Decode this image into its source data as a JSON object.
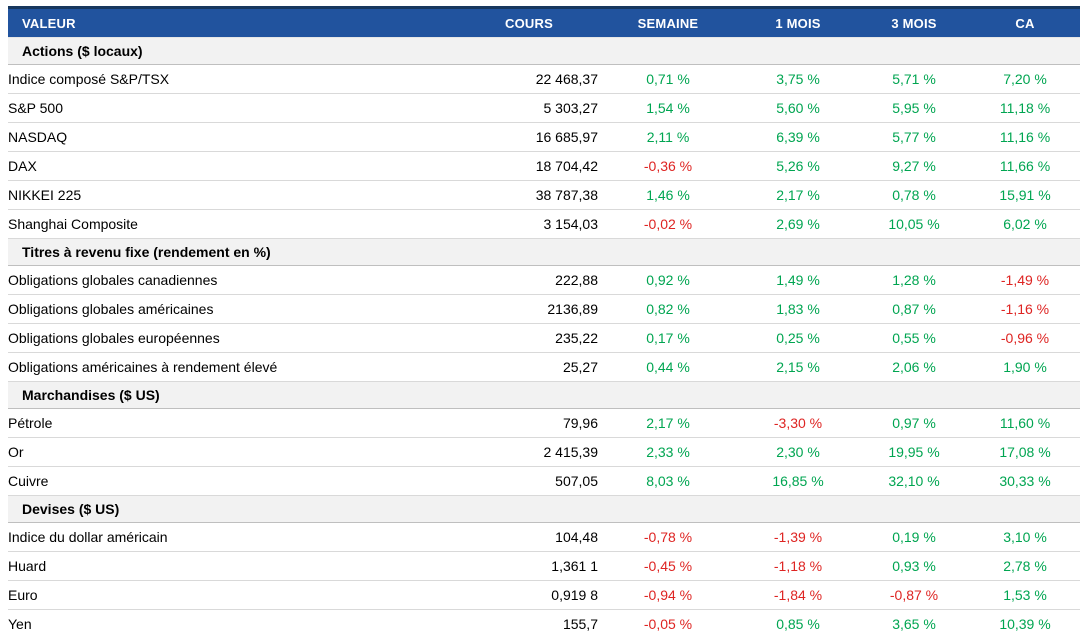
{
  "colors": {
    "header_bg": "#21539E",
    "header_text": "#FFFFFF",
    "border_dark": "#17375E",
    "section_bg": "#F2F2F2",
    "row_border": "#D9D9D9",
    "positive": "#00A551",
    "negative": "#DE2422"
  },
  "table": {
    "columns": [
      "VALEUR",
      "COURS",
      "SEMAINE",
      "1 MOIS",
      "3 MOIS",
      "CA"
    ],
    "sections": [
      {
        "label": "Actions ($ locaux)",
        "rows": [
          {
            "name": "Indice composé S&P/TSX",
            "cours": "22 468,37",
            "pct": [
              "0,71 %",
              "3,75 %",
              "5,71 %",
              "7,20 %"
            ]
          },
          {
            "name": "S&P 500",
            "cours": "5 303,27",
            "pct": [
              "1,54 %",
              "5,60 %",
              "5,95 %",
              "11,18 %"
            ]
          },
          {
            "name": "NASDAQ",
            "cours": "16 685,97",
            "pct": [
              "2,11 %",
              "6,39 %",
              "5,77 %",
              "11,16 %"
            ]
          },
          {
            "name": "DAX",
            "cours": "18 704,42",
            "pct": [
              "-0,36 %",
              "5,26 %",
              "9,27 %",
              "11,66 %"
            ]
          },
          {
            "name": "NIKKEI 225",
            "cours": "38 787,38",
            "pct": [
              "1,46 %",
              "2,17 %",
              "0,78 %",
              "15,91 %"
            ]
          },
          {
            "name": "Shanghai Composite",
            "cours": "3 154,03",
            "pct": [
              "-0,02 %",
              "2,69 %",
              "10,05 %",
              "6,02 %"
            ]
          }
        ]
      },
      {
        "label": "Titres à revenu fixe (rendement en %)",
        "rows": [
          {
            "name": "Obligations globales canadiennes",
            "cours": "222,88",
            "pct": [
              "0,92 %",
              "1,49 %",
              "1,28 %",
              "-1,49 %"
            ]
          },
          {
            "name": "Obligations globales américaines",
            "cours": "2136,89",
            "pct": [
              "0,82 %",
              "1,83 %",
              "0,87 %",
              "-1,16 %"
            ]
          },
          {
            "name": "Obligations globales européennes",
            "cours": "235,22",
            "pct": [
              "0,17 %",
              "0,25 %",
              "0,55 %",
              "-0,96 %"
            ]
          },
          {
            "name": "Obligations américaines à rendement élevé",
            "cours": "25,27",
            "pct": [
              "0,44 %",
              "2,15 %",
              "2,06 %",
              "1,90 %"
            ]
          }
        ]
      },
      {
        "label": "Marchandises ($ US)",
        "rows": [
          {
            "name": "Pétrole",
            "cours": "79,96",
            "pct": [
              "2,17 %",
              "-3,30 %",
              "0,97 %",
              "11,60 %"
            ]
          },
          {
            "name": "Or",
            "cours": "2 415,39",
            "pct": [
              "2,33 %",
              "2,30 %",
              "19,95 %",
              "17,08 %"
            ]
          },
          {
            "name": "Cuivre",
            "cours": "507,05",
            "pct": [
              "8,03 %",
              "16,85 %",
              "32,10 %",
              "30,33 %"
            ]
          }
        ]
      },
      {
        "label": "Devises ($ US)",
        "rows": [
          {
            "name": "Indice du dollar américain",
            "cours": "104,48",
            "pct": [
              "-0,78 %",
              "-1,39 %",
              "0,19 %",
              "3,10 %"
            ]
          },
          {
            "name": "Huard",
            "cours": "1,361 1",
            "pct": [
              "-0,45 %",
              "-1,18 %",
              "0,93 %",
              "2,78 %"
            ]
          },
          {
            "name": "Euro",
            "cours": "0,919 8",
            "pct": [
              "-0,94 %",
              "-1,84 %",
              "-0,87 %",
              "1,53 %"
            ]
          },
          {
            "name": "Yen",
            "cours": "155,7",
            "pct": [
              "-0,05 %",
              "0,85 %",
              "3,65 %",
              "10,39 %"
            ]
          }
        ]
      }
    ]
  }
}
